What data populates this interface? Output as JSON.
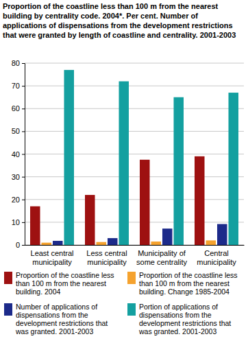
{
  "chart_data": {
    "type": "bar",
    "title": "Proportion of the coastline less than 100 m from the nearest building by centrality code. 2004*. Per cent. Number of applications of dispensations from the development restrictions that were granted by length of coastline and centrality. 2001-2003",
    "categories": [
      "Least central municipality",
      "Less central municipality",
      "Municipality of some centrality",
      "Central municipality"
    ],
    "series": [
      {
        "name": "Proportion of the coastline less than 100 m from the nearest building. 2004",
        "color": "#9e1111",
        "values": [
          17,
          22,
          37.5,
          39
        ]
      },
      {
        "name": "Proportion of the coastline less than 100 m from the nearest building. Change 1985-2004",
        "color": "#f5a22e",
        "values": [
          1,
          1.3,
          1.5,
          2
        ]
      },
      {
        "name": "Number of applications of dispensations from the development restrictions that was granted. 2001-2003",
        "color": "#1c2a8a",
        "values": [
          1.8,
          3,
          7.2,
          9.2
        ]
      },
      {
        "name": "Portion of applications of dispensations from the development restrictions that was granted. 2001-2003",
        "color": "#14a0a0",
        "values": [
          77,
          72,
          65,
          67
        ]
      }
    ],
    "ylim": [
      0,
      80
    ],
    "yticks": [
      0,
      10,
      20,
      30,
      40,
      50,
      60,
      70,
      80
    ],
    "grid": true,
    "legend": "bottom"
  }
}
